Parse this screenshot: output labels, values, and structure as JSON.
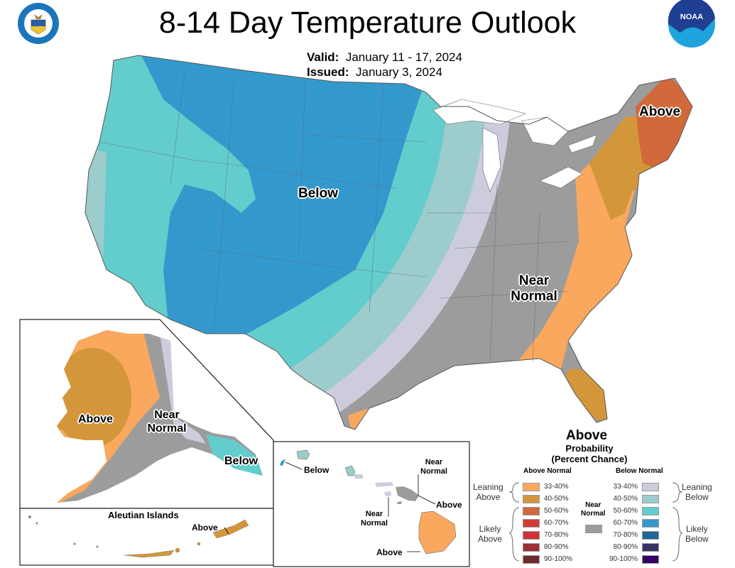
{
  "header": {
    "title": "8-14 Day Temperature Outlook",
    "valid_label": "Valid:",
    "valid_value": "January 11 - 17, 2024",
    "issued_label": "Issued:",
    "issued_value": "January 3, 2024",
    "left_logo": "Department of Commerce seal",
    "right_logo": "NOAA"
  },
  "map": {
    "conus_labels": {
      "below": "Below",
      "near_normal_1": "Near",
      "near_normal_2": "Normal",
      "above_northeast": "Above",
      "above_florida": "Above"
    },
    "alaska": {
      "above": "Above",
      "near_normal_1": "Near",
      "near_normal_2": "Normal",
      "below": "Below",
      "aleutian_title": "Aleutian Islands",
      "aleutian_above": "Above"
    },
    "hawaii": {
      "below": "Below",
      "near_normal_top_1": "Near",
      "near_normal_top_2": "Normal",
      "above_maui": "Above",
      "near_normal_mid_1": "Near",
      "near_normal_mid_2": "Normal",
      "above_big_island": "Above"
    },
    "colors": {
      "above_33_40": "#F9A85E",
      "above_40_50": "#D4963A",
      "above_50_60": "#D2693A",
      "above_60_70": "#D33A35",
      "above_70_80": "#CF3338",
      "above_80_90": "#9E2F35",
      "above_90_100": "#6B2C2C",
      "near_normal": "#9C9C9C",
      "below_33_40": "#CCCCDD",
      "below_40_50": "#9CCCCC",
      "below_50_60": "#63CCCC",
      "below_60_70": "#3399CC",
      "below_70_80": "#1F6699",
      "below_80_90": "#333366",
      "below_90_100": "#330066"
    }
  },
  "legend": {
    "title_1": "Probability",
    "title_2": "(Percent Chance)",
    "above_header": "Above Normal",
    "below_header": "Below Normal",
    "near_normal_1": "Near",
    "near_normal_2": "Normal",
    "leaning_above_1": "Leaning",
    "leaning_above_2": "Above",
    "likely_above_1": "Likely",
    "likely_above_2": "Above",
    "leaning_below_1": "Leaning",
    "leaning_below_2": "Below",
    "likely_below_1": "Likely",
    "likely_below_2": "Below",
    "above_items": [
      {
        "range": "33-40%",
        "color": "#F9A85E"
      },
      {
        "range": "40-50%",
        "color": "#D4963A"
      },
      {
        "range": "50-60%",
        "color": "#D2693A"
      },
      {
        "range": "60-70%",
        "color": "#D33A35"
      },
      {
        "range": "70-80%",
        "color": "#CF3338"
      },
      {
        "range": "80-90%",
        "color": "#9E2F35"
      },
      {
        "range": "90-100%",
        "color": "#6B2C2C"
      }
    ],
    "below_items": [
      {
        "range": "33-40%",
        "color": "#CCCCDD"
      },
      {
        "range": "40-50%",
        "color": "#9CCCCC"
      },
      {
        "range": "50-60%",
        "color": "#63CCCC"
      },
      {
        "range": "60-70%",
        "color": "#3399CC"
      },
      {
        "range": "70-80%",
        "color": "#1F6699"
      },
      {
        "range": "80-90%",
        "color": "#333366"
      },
      {
        "range": "90-100%",
        "color": "#330066"
      }
    ],
    "near_normal_color": "#9C9C9C"
  }
}
